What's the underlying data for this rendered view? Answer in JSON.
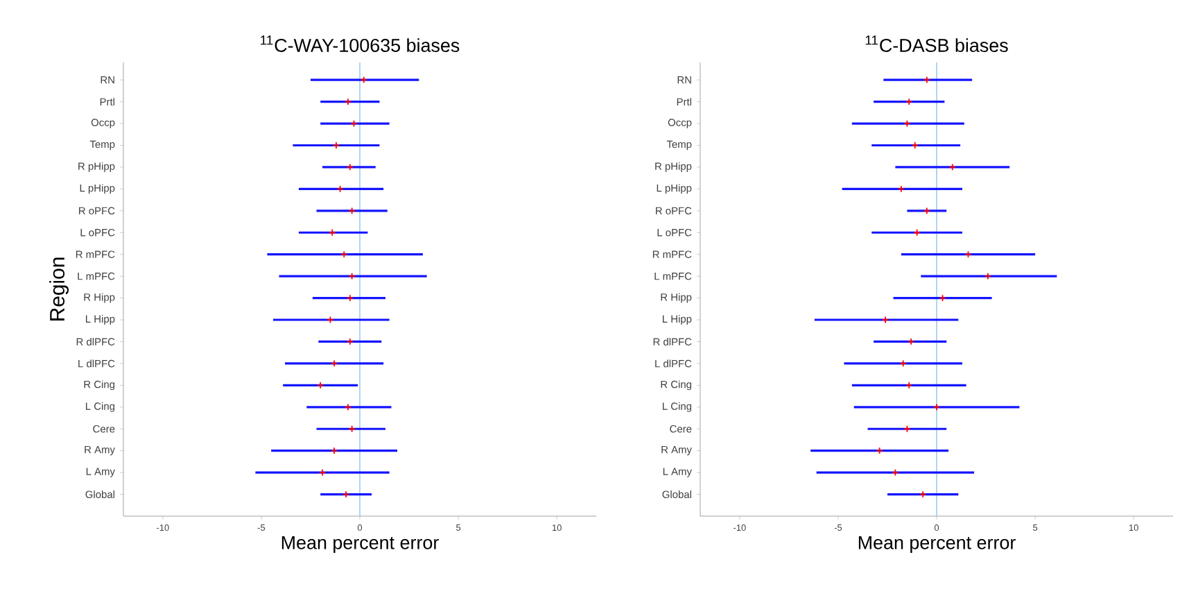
{
  "chart_data": [
    {
      "type": "scatter",
      "orientation": "horizontal",
      "title": "$^{11}$C-WAY-100635 biases",
      "xlabel": "Mean percent error",
      "ylabel": "Region",
      "marker": "cross",
      "categories": [
        "RN",
        "Prtl",
        "Occp",
        "Temp",
        "R pHipp",
        "L pHipp",
        "R oPFC",
        "L oPFC",
        "R mPFC",
        "L mPFC",
        "R Hipp",
        "L Hipp",
        "R dlPFC",
        "L dlPFC",
        "R Cing",
        "L Cing",
        "Cere",
        "R Amy",
        "L Amy",
        "Global"
      ],
      "series": [
        {
          "color": "#ff0000",
          "values": [
            0.2,
            -0.6,
            -0.3,
            -1.2,
            -0.5,
            -1.0,
            -0.4,
            -1.4,
            -0.8,
            -0.4,
            -0.5,
            -1.5,
            -0.5,
            -1.3,
            -2.0,
            -0.6,
            -0.4,
            -1.3,
            -1.9,
            -0.7
          ],
          "errors": [
            [
              -2.5,
              3.0
            ],
            [
              -2.0,
              1.0
            ],
            [
              -2.0,
              1.5
            ],
            [
              -3.4,
              1.0
            ],
            [
              -1.9,
              0.8
            ],
            [
              -3.1,
              1.2
            ],
            [
              -2.2,
              1.4
            ],
            [
              -3.1,
              0.4
            ],
            [
              -4.7,
              3.2
            ],
            [
              -4.1,
              3.4
            ],
            [
              -2.4,
              1.3
            ],
            [
              -4.4,
              1.5
            ],
            [
              -2.1,
              1.1
            ],
            [
              -3.8,
              1.2
            ],
            [
              -3.9,
              -0.1
            ],
            [
              -2.7,
              1.6
            ],
            [
              -2.2,
              1.3
            ],
            [
              -4.5,
              1.9
            ],
            [
              -5.3,
              1.5
            ],
            [
              -2.0,
              0.6
            ]
          ]
        }
      ],
      "xlim": [
        -12,
        12
      ],
      "xticks": [
        -10,
        -5,
        0,
        5,
        10
      ],
      "ref_lines": [
        {
          "axis": "x",
          "value": 0,
          "color": "#9ecbf0"
        }
      ]
    },
    {
      "type": "scatter",
      "orientation": "horizontal",
      "title": "$^{11}$C-DASB biases",
      "xlabel": "Mean percent error",
      "marker": "cross",
      "categories": [
        "RN",
        "Prtl",
        "Occp",
        "Temp",
        "R pHipp",
        "L pHipp",
        "R oPFC",
        "L oPFC",
        "R mPFC",
        "L mPFC",
        "R Hipp",
        "L Hipp",
        "R dlPFC",
        "L dlPFC",
        "R Cing",
        "L Cing",
        "Cere",
        "R Amy",
        "L Amy",
        "Global"
      ],
      "series": [
        {
          "color": "#ff0000",
          "values": [
            -0.5,
            -1.4,
            -1.5,
            -1.1,
            0.8,
            -1.8,
            -0.5,
            -1.0,
            1.6,
            2.6,
            0.3,
            -2.6,
            -1.3,
            -1.7,
            -1.4,
            0.0,
            -1.5,
            -2.9,
            -2.1,
            -0.7
          ],
          "errors": [
            [
              -2.7,
              1.8
            ],
            [
              -3.2,
              0.4
            ],
            [
              -4.3,
              1.4
            ],
            [
              -3.3,
              1.2
            ],
            [
              -2.1,
              3.7
            ],
            [
              -4.8,
              1.3
            ],
            [
              -1.5,
              0.5
            ],
            [
              -3.3,
              1.3
            ],
            [
              -1.8,
              5.0
            ],
            [
              -0.8,
              6.1
            ],
            [
              -2.2,
              2.8
            ],
            [
              -6.2,
              1.1
            ],
            [
              -3.2,
              0.5
            ],
            [
              -4.7,
              1.3
            ],
            [
              -4.3,
              1.5
            ],
            [
              -4.2,
              4.2
            ],
            [
              -3.5,
              0.5
            ],
            [
              -6.4,
              0.6
            ],
            [
              -6.1,
              1.9
            ],
            [
              -2.5,
              1.1
            ]
          ]
        }
      ],
      "xlim": [
        -12,
        12
      ],
      "xticks": [
        -10,
        -5,
        0,
        5,
        10
      ],
      "ref_lines": [
        {
          "axis": "x",
          "value": 0,
          "color": "#9ecbf0"
        }
      ]
    }
  ]
}
